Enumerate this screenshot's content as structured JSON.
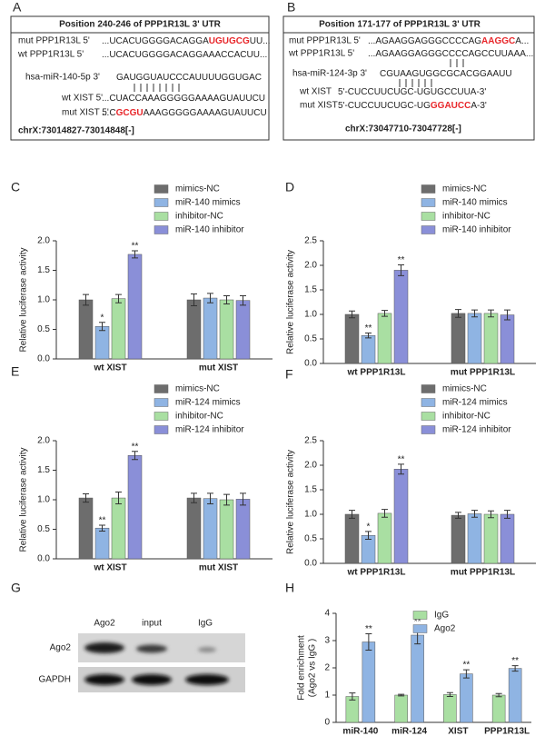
{
  "panels": [
    "A",
    "B",
    "C",
    "D",
    "E",
    "F",
    "G",
    "H"
  ],
  "sequence_a": {
    "title": "Position 240-246 of PPP1R13L 3' UTR",
    "rows": [
      {
        "label": "mut PPP1R13L 5'",
        "segments": [
          {
            "text": "...UCACUGGGGACAGGA",
            "color": "#222222"
          },
          {
            "text": "UGUGCG",
            "color": "#e8262a"
          },
          {
            "text": "UU...",
            "color": "#222222"
          }
        ]
      },
      {
        "label": "wt PPP1R13L 5'",
        "segments": [
          {
            "text": "...UCACUGGGGACAGGAAACCACUU...",
            "color": "#222222"
          }
        ]
      },
      {
        "label": "hsa-miR-140-5p 3'",
        "segments": [
          {
            "text": "GAUGGUAUCCCAUUUUGGUGAC",
            "color": "#222222"
          }
        ]
      },
      {
        "label": "wt XIST 5'",
        "segments": [
          {
            "text": "...CUACCAAAGGGGGAAAAGUAUUCU",
            "color": "#222222"
          }
        ]
      },
      {
        "label": "mut XIST 5'",
        "segments": [
          {
            "text": "...C",
            "color": "#222222"
          },
          {
            "text": "GCGU",
            "color": "#e8262a"
          },
          {
            "text": "AAAGGGGGAAAAGUAUUCU",
            "color": "#222222"
          }
        ]
      }
    ],
    "coordinates": "chrX:73014827-73014848[-]"
  },
  "sequence_b": {
    "title": "Position 171-177 of PPP1R13L 3' UTR",
    "rows": [
      {
        "label": "mut PPP1R13L 5'",
        "segments": [
          {
            "text": "...AGAAGGAGGGCCCCAG",
            "color": "#222222"
          },
          {
            "text": "AAGGC",
            "color": "#e8262a"
          },
          {
            "text": "A...",
            "color": "#222222"
          }
        ]
      },
      {
        "label": "wt PPP1R13L 5'",
        "segments": [
          {
            "text": "...AGAAGGAGGGCCCCAGCCUUAAA...",
            "color": "#222222"
          }
        ]
      },
      {
        "label": "hsa-miR-124-3p 3'",
        "segments": [
          {
            "text": "CGUAAGUGGCGCACGGAAUU",
            "color": "#222222"
          }
        ]
      },
      {
        "label": "wt XIST",
        "segments": [
          {
            "text": "5'-CUCCUUCUGC-UGUGCCUUA-3'",
            "color": "#222222"
          }
        ]
      },
      {
        "label": "mut XIST",
        "segments": [
          {
            "text": "5'-CUCCUUCUGC-UG",
            "color": "#222222"
          },
          {
            "text": "GGAUCC",
            "color": "#e8262a"
          },
          {
            "text": "A-3'",
            "color": "#222222"
          }
        ]
      }
    ],
    "coordinates": "chrX:73047710-73047728[-]"
  },
  "blot": {
    "lanes": [
      "Ago2",
      "input",
      "IgG"
    ],
    "rows": [
      "Ago2",
      "GAPDH"
    ]
  },
  "chart_data": [
    {
      "type": "bar",
      "y_label": [
        "Relative luciferase activity"
      ],
      "legend": "above",
      "categories": [
        "wt XIST",
        "mut XIST"
      ],
      "series": [
        {
          "name": "mimics-NC",
          "color": "#6d6d6d",
          "values": [
            1.0,
            1.0
          ],
          "errors": [
            0.09,
            0.1
          ],
          "annotations": [
            null,
            null
          ]
        },
        {
          "name": "miR-140 mimics",
          "color": "#8fb4e3",
          "values": [
            0.55,
            1.03
          ],
          "errors": [
            0.07,
            0.08
          ],
          "annotations": [
            "*",
            null
          ]
        },
        {
          "name": "inhibitor-NC",
          "color": "#a9dfa2",
          "values": [
            1.02,
            1.0
          ],
          "errors": [
            0.07,
            0.07
          ],
          "annotations": [
            null,
            null
          ]
        },
        {
          "name": "miR-140 inhibitor",
          "color": "#8a8fd8",
          "values": [
            1.77,
            0.99
          ],
          "errors": [
            0.06,
            0.08
          ],
          "annotations": [
            "**",
            null
          ]
        }
      ],
      "ylim": [
        0,
        2.0
      ],
      "yticks": [
        {
          "value": 0,
          "label": "0.0"
        },
        {
          "value": 0.5,
          "label": "0.5"
        },
        {
          "value": 1.0,
          "label": "1.0"
        },
        {
          "value": 1.5,
          "label": "1.5"
        },
        {
          "value": 2.0,
          "label": "2.0"
        }
      ]
    },
    {
      "type": "bar",
      "y_label": [
        "Relative luciferase activity"
      ],
      "legend": "above",
      "categories": [
        "wt PPP1R13L",
        "mut PPP1R13L"
      ],
      "series": [
        {
          "name": "mimics-NC",
          "color": "#6d6d6d",
          "values": [
            1.0,
            1.02
          ],
          "errors": [
            0.07,
            0.08
          ],
          "annotations": [
            null,
            null
          ]
        },
        {
          "name": "miR-140 mimics",
          "color": "#8fb4e3",
          "values": [
            0.57,
            1.02
          ],
          "errors": [
            0.05,
            0.07
          ],
          "annotations": [
            "**",
            null
          ]
        },
        {
          "name": "inhibitor-NC",
          "color": "#a9dfa2",
          "values": [
            1.02,
            1.02
          ],
          "errors": [
            0.06,
            0.07
          ],
          "annotations": [
            null,
            null
          ]
        },
        {
          "name": "miR-140 inhibitor",
          "color": "#8a8fd8",
          "values": [
            1.9,
            0.99
          ],
          "errors": [
            0.11,
            0.1
          ],
          "annotations": [
            "**",
            null
          ]
        }
      ],
      "ylim": [
        0,
        2.5
      ],
      "yticks": [
        {
          "value": 0,
          "label": "0.0"
        },
        {
          "value": 0.5,
          "label": "0.5"
        },
        {
          "value": 1.0,
          "label": "1.0"
        },
        {
          "value": 1.5,
          "label": "1.5"
        },
        {
          "value": 2.0,
          "label": "2.0"
        },
        {
          "value": 2.5,
          "label": "2.5"
        }
      ]
    },
    {
      "type": "bar",
      "y_label": [
        "Relative luciferase activity"
      ],
      "legend": "above",
      "categories": [
        "wt XIST",
        "mut XIST"
      ],
      "series": [
        {
          "name": "mimics-NC",
          "color": "#6d6d6d",
          "values": [
            1.03,
            1.03
          ],
          "errors": [
            0.07,
            0.08
          ],
          "annotations": [
            null,
            null
          ]
        },
        {
          "name": "miR-124 mimics",
          "color": "#8fb4e3",
          "values": [
            0.52,
            1.02
          ],
          "errors": [
            0.05,
            0.09
          ],
          "annotations": [
            "**",
            null
          ]
        },
        {
          "name": "inhibitor-NC",
          "color": "#a9dfa2",
          "values": [
            1.03,
            1.0
          ],
          "errors": [
            0.1,
            0.09
          ],
          "annotations": [
            null,
            null
          ]
        },
        {
          "name": "miR-124 inhibitor",
          "color": "#8a8fd8",
          "values": [
            1.75,
            1.01
          ],
          "errors": [
            0.07,
            0.1
          ],
          "annotations": [
            "**",
            null
          ]
        }
      ],
      "ylim": [
        0,
        2.0
      ],
      "yticks": [
        {
          "value": 0,
          "label": "0.0"
        },
        {
          "value": 0.5,
          "label": "0.5"
        },
        {
          "value": 1.0,
          "label": "1.0"
        },
        {
          "value": 1.5,
          "label": "1.5"
        },
        {
          "value": 2.0,
          "label": "2.0"
        }
      ]
    },
    {
      "type": "bar",
      "y_label": [
        "Relative luciferase activity"
      ],
      "legend": "above",
      "categories": [
        "wt PPP1R13L",
        "mut PPP1R13L"
      ],
      "series": [
        {
          "name": "mimics-NC",
          "color": "#6d6d6d",
          "values": [
            1.0,
            0.98
          ],
          "errors": [
            0.08,
            0.06
          ],
          "annotations": [
            null,
            null
          ]
        },
        {
          "name": "miR-124 mimics",
          "color": "#8fb4e3",
          "values": [
            0.57,
            1.01
          ],
          "errors": [
            0.08,
            0.07
          ],
          "annotations": [
            "*",
            null
          ]
        },
        {
          "name": "inhibitor-NC",
          "color": "#a9dfa2",
          "values": [
            1.02,
            1.0
          ],
          "errors": [
            0.08,
            0.07
          ],
          "annotations": [
            null,
            null
          ]
        },
        {
          "name": "miR-124 inhibitor",
          "color": "#8a8fd8",
          "values": [
            1.92,
            1.0
          ],
          "errors": [
            0.1,
            0.08
          ],
          "annotations": [
            "**",
            null
          ]
        }
      ],
      "ylim": [
        0,
        2.5
      ],
      "yticks": [
        {
          "value": 0,
          "label": "0.0"
        },
        {
          "value": 0.5,
          "label": "0.5"
        },
        {
          "value": 1.0,
          "label": "1.0"
        },
        {
          "value": 1.5,
          "label": "1.5"
        },
        {
          "value": 2.0,
          "label": "2.0"
        },
        {
          "value": 2.5,
          "label": "2.5"
        }
      ]
    },
    {
      "type": "bar",
      "y_label": [
        "Fold enrichment",
        "(Ago2 vs IgG )"
      ],
      "legend": "upper right",
      "categories": [
        "miR-140",
        "miR-124",
        "XIST",
        "PPP1R13L"
      ],
      "series": [
        {
          "name": "IgG",
          "color": "#a9dfa2",
          "values": [
            0.95,
            1.0,
            1.02,
            1.0
          ],
          "errors": [
            0.13,
            0.03,
            0.07,
            0.06
          ],
          "annotations": [
            null,
            null,
            null,
            null
          ]
        },
        {
          "name": "Ago2",
          "color": "#8fb4e3",
          "values": [
            2.95,
            3.2,
            1.78,
            1.98
          ],
          "errors": [
            0.3,
            0.32,
            0.15,
            0.1
          ],
          "annotations": [
            "**",
            "**",
            "**",
            "**"
          ]
        }
      ],
      "ylim": [
        0,
        4
      ],
      "yticks": [
        0,
        1,
        2,
        3,
        4
      ]
    }
  ]
}
